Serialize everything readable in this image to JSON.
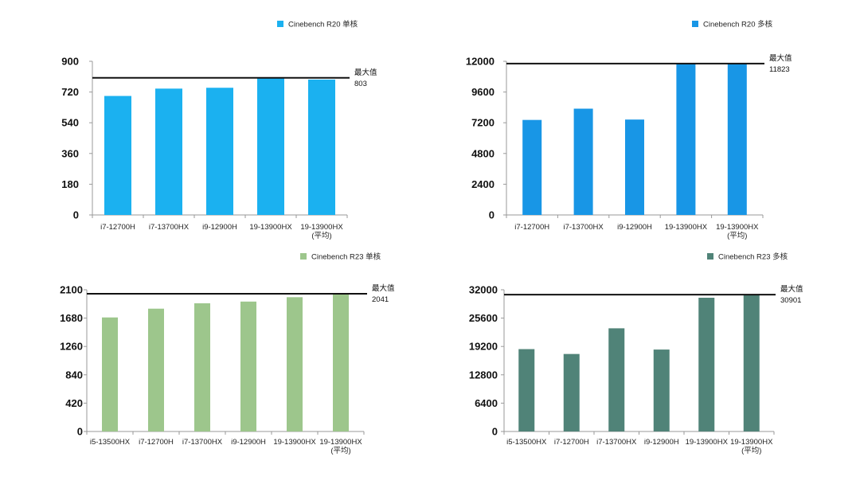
{
  "chart_data": [
    {
      "type": "bar",
      "series": [
        {
          "name": "Cinebench R20 单核",
          "values": [
            697,
            740,
            745,
            803,
            793
          ]
        }
      ],
      "categories": [
        "i7-12700H",
        "i7-13700HX",
        "i9-12900H",
        "19-13900HX",
        "19-13900HX\n(平均)"
      ],
      "ylim": [
        0,
        900
      ],
      "yticks": [
        0,
        180,
        360,
        540,
        720,
        900
      ],
      "reference_line": {
        "label": "最大值",
        "value": 803
      },
      "color": "#1BB1F0",
      "grid": false,
      "legend_position": "top"
    },
    {
      "type": "bar",
      "series": [
        {
          "name": "Cinebench R20 多核",
          "values": [
            7420,
            8300,
            7450,
            11823,
            11823
          ]
        }
      ],
      "categories": [
        "i7-12700H",
        "i7-13700HX",
        "i9-12900H",
        "19-13900HX",
        "19-13900HX\n(平均)"
      ],
      "ylim": [
        0,
        12000
      ],
      "yticks": [
        0,
        2400,
        4800,
        7200,
        9600,
        12000
      ],
      "reference_line": {
        "label": "最大值",
        "value": 11823
      },
      "color": "#1896E6",
      "grid": false,
      "legend_position": "top"
    },
    {
      "type": "bar",
      "series": [
        {
          "name": "Cinebench R23 单核",
          "values": [
            1690,
            1820,
            1900,
            1925,
            1990,
            2041
          ]
        }
      ],
      "categories": [
        "i5-13500HX",
        "i7-12700H",
        "i7-13700HX",
        "i9-12900H",
        "19-13900HX",
        "19-13900HX\n(平均)"
      ],
      "ylim": [
        0,
        2100
      ],
      "yticks": [
        0,
        420,
        840,
        1260,
        1680,
        2100
      ],
      "reference_line": {
        "label": "最大值",
        "value": 2041
      },
      "color": "#9DC68C",
      "grid": false,
      "legend_position": "top"
    },
    {
      "type": "bar",
      "series": [
        {
          "name": "Cinebench R23 多核",
          "values": [
            18600,
            17500,
            23300,
            18500,
            30200,
            30901
          ]
        }
      ],
      "categories": [
        "i5-13500HX",
        "i7-12700H",
        "i7-13700HX",
        "i9-12900H",
        "19-13900HX",
        "19-13900HX\n(平均)"
      ],
      "ylim": [
        0,
        32000
      ],
      "yticks": [
        0,
        6400,
        12800,
        19200,
        25600,
        32000
      ],
      "reference_line": {
        "label": "最大值",
        "value": 30901
      },
      "color": "#508378",
      "grid": false,
      "legend_position": "top"
    }
  ]
}
